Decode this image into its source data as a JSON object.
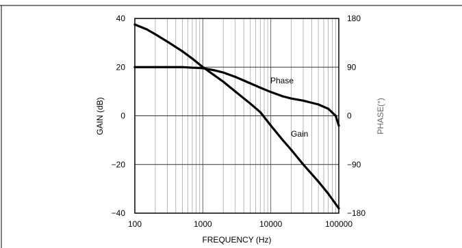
{
  "chart_data": {
    "type": "line",
    "title": "",
    "xlabel": "FREQUENCY (Hz)",
    "ylabel": "GAIN (dB)",
    "y2label": "PHASE(°)",
    "x_scale": "log",
    "xlim": [
      100,
      100000
    ],
    "ylim": [
      -40,
      40
    ],
    "y2lim": [
      -180,
      180
    ],
    "grid": {
      "vertical": "log-minor",
      "horizontal": "major"
    },
    "x_ticks": [
      "100",
      "1000",
      "10000",
      "100000"
    ],
    "y_ticks": [
      "40",
      "20",
      "0",
      "−20",
      "−40"
    ],
    "y2_ticks": [
      "180",
      "90",
      "0",
      "−90",
      "−180"
    ],
    "series": [
      {
        "name": "Gain",
        "axis": "left",
        "x": [
          100,
          150,
          200,
          300,
          500,
          700,
          1000,
          1500,
          2000,
          3000,
          5000,
          7000,
          10000,
          15000,
          20000,
          30000,
          50000,
          70000,
          100000
        ],
        "values": [
          37.5,
          35.5,
          33.5,
          30.5,
          26.5,
          23.5,
          20,
          16.5,
          14,
          10,
          5,
          1.5,
          -4,
          -10,
          -14,
          -20,
          -27,
          -32,
          -38
        ]
      },
      {
        "name": "Phase",
        "axis": "right",
        "x": [
          100,
          200,
          300,
          500,
          700,
          1000,
          1500,
          2000,
          3000,
          5000,
          7000,
          10000,
          15000,
          20000,
          30000,
          50000,
          70000,
          90000,
          100000
        ],
        "values": [
          90,
          90,
          90,
          90,
          89,
          88,
          84,
          80,
          72,
          60,
          52,
          44,
          36,
          32,
          28,
          21,
          13,
          0,
          -18
        ]
      }
    ],
    "annotations": [
      {
        "text": "Phase",
        "series": "Phase"
      },
      {
        "text": "Gain",
        "series": "Gain"
      }
    ]
  }
}
